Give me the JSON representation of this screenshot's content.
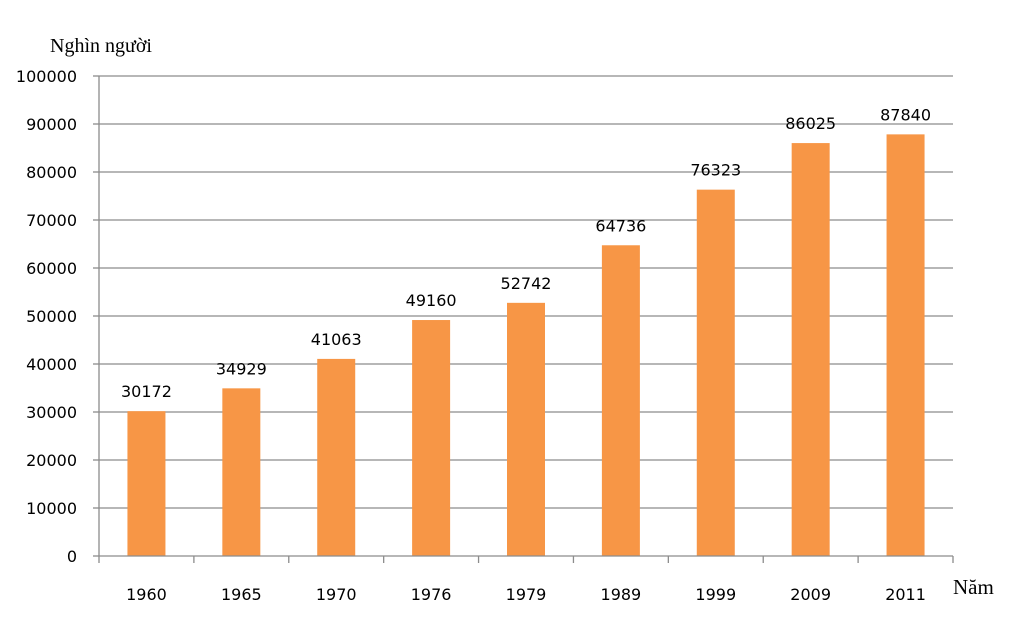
{
  "chart_data": {
    "type": "bar",
    "ylabel": "Nghìn người",
    "xlabel": "Năm",
    "categories": [
      "1960",
      "1965",
      "1970",
      "1976",
      "1979",
      "1989",
      "1999",
      "2009",
      "2011"
    ],
    "values": [
      30172,
      34929,
      41063,
      49160,
      52742,
      64736,
      76323,
      86025,
      87840
    ],
    "ylim": [
      0,
      100000
    ],
    "yticks": [
      0,
      10000,
      20000,
      30000,
      40000,
      50000,
      60000,
      70000,
      80000,
      90000,
      100000
    ],
    "grid": true,
    "legend": "none",
    "bar_color": "#f79646"
  }
}
